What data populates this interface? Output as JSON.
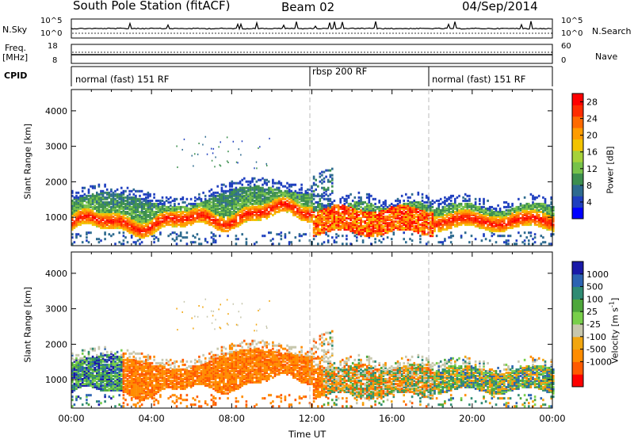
{
  "header": {
    "station": "South Pole Station (fitACF)",
    "beam": "Beam 02",
    "date": "04/Sep/2014"
  },
  "left_labels": {
    "nsky": "N.Sky",
    "freq": "Freq.",
    "freq_unit": "[MHz]",
    "cpid": "CPID",
    "nsky_ticks": [
      "10^5",
      "10^0"
    ],
    "freq_ticks": [
      "18",
      "8"
    ]
  },
  "right_labels": {
    "nsearch": "N.Search",
    "nsearch_ticks": [
      "10^5",
      "10^0"
    ],
    "nave": "Nave",
    "nave_ticks": [
      "60",
      "0"
    ]
  },
  "modes": [
    "normal (fast) 151 RF",
    "rbsp 200 RF",
    "normal (fast) 151 RF"
  ],
  "colors": {
    "power": [
      "#0000ff",
      "#1f3fbf",
      "#2e6b8f",
      "#3d8f4f",
      "#77c24a",
      "#a6d23a",
      "#f2c300",
      "#ff9c00",
      "#ff6a00",
      "#ff2c00",
      "#ff0000"
    ],
    "velocity": [
      "#1a1aa8",
      "#2c63b2",
      "#2f8b73",
      "#4ea73b",
      "#78cf4a",
      "#c7c7ad",
      "#f2a60f",
      "#ff8c00",
      "#ff5a00",
      "#ff0000"
    ]
  },
  "chart_data": [
    {
      "type": "heatmap",
      "name": "power",
      "ylabel": "Slant Range [km]",
      "yticks": [
        "1000",
        "2000",
        "3000",
        "4000"
      ],
      "ylim": [
        200,
        4600
      ],
      "xlim": [
        "00:00",
        "24:00"
      ],
      "colorbar_label": "Power [dB]",
      "colorbar_ticks": [
        "4",
        "8",
        "12",
        "16",
        "20",
        "24",
        "28"
      ],
      "colorbar_range": [
        0,
        30
      ]
    },
    {
      "type": "heatmap",
      "name": "velocity",
      "ylabel": "Slant Range [km]",
      "yticks": [
        "1000",
        "2000",
        "3000",
        "4000"
      ],
      "ylim": [
        200,
        4600
      ],
      "xlim": [
        "00:00",
        "24:00"
      ],
      "xlabel": "Time UT",
      "xticks": [
        "00:00",
        "04:00",
        "08:00",
        "12:00",
        "16:00",
        "20:00",
        "00:00"
      ],
      "colorbar_label": "Velocity [m s",
      "colorbar_label_sup": "-1",
      "colorbar_label_end": "]",
      "colorbar_ticks": [
        "1000",
        "500",
        "100",
        "25",
        "-25",
        "-100",
        "-500",
        "-1000"
      ]
    }
  ]
}
